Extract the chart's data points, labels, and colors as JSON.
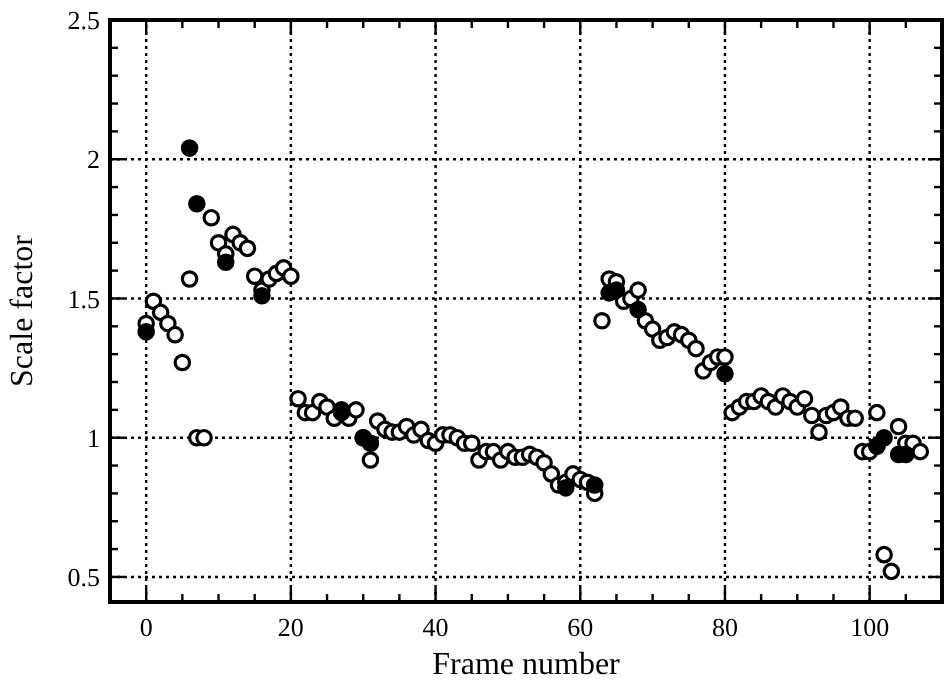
{
  "chart_data": {
    "type": "scatter",
    "xlabel": "Frame number",
    "ylabel": "Scale factor",
    "xlim": [
      -5,
      110
    ],
    "ylim": [
      0.41,
      2.5
    ],
    "xticks": [
      0,
      {
        "value": 5,
        "label": null
      },
      {
        "value": 10,
        "label": null
      },
      {
        "value": 15,
        "label": null
      },
      20,
      {
        "value": 25,
        "label": null
      },
      {
        "value": 30,
        "label": null
      },
      {
        "value": 35,
        "label": null
      },
      40,
      {
        "value": 45,
        "label": null
      },
      {
        "value": 50,
        "label": null
      },
      {
        "value": 55,
        "label": null
      },
      60,
      {
        "value": 65,
        "label": null
      },
      {
        "value": 70,
        "label": null
      },
      {
        "value": 75,
        "label": null
      },
      80,
      {
        "value": 85,
        "label": null
      },
      {
        "value": 90,
        "label": null
      },
      {
        "value": 95,
        "label": null
      },
      100,
      {
        "value": 105,
        "label": null
      }
    ],
    "yticks": [
      0.5,
      {
        "value": 0.6,
        "label": null
      },
      {
        "value": 0.7,
        "label": null
      },
      {
        "value": 0.8,
        "label": null
      },
      {
        "value": 0.9,
        "label": null
      },
      1,
      {
        "value": 1.1,
        "label": null
      },
      {
        "value": 1.2,
        "label": null
      },
      {
        "value": 1.3,
        "label": null
      },
      {
        "value": 1.4,
        "label": null
      },
      1.5,
      {
        "value": 1.6,
        "label": null
      },
      {
        "value": 1.7,
        "label": null
      },
      {
        "value": 1.8,
        "label": null
      },
      {
        "value": 1.9,
        "label": null
      },
      2,
      {
        "value": 2.1,
        "label": null
      },
      {
        "value": 2.2,
        "label": null
      },
      {
        "value": 2.3,
        "label": null
      },
      {
        "value": 2.4,
        "label": null
      },
      2.5
    ],
    "grid": true,
    "marker": "circle",
    "series": [
      {
        "color": "#ffffff",
        "x": [
          0,
          1,
          2,
          3,
          4,
          5,
          6,
          7,
          8,
          9,
          10,
          11,
          12,
          13,
          14,
          15,
          16,
          17,
          18,
          19,
          20,
          21,
          22,
          23,
          24,
          25,
          26,
          27,
          28,
          29,
          30,
          31,
          32,
          33,
          34,
          35,
          36,
          37,
          38,
          39,
          40,
          41,
          42,
          43,
          44,
          45,
          46,
          47,
          48,
          49,
          50,
          51,
          52,
          53,
          54,
          55,
          56,
          57,
          58,
          59,
          60,
          61,
          62,
          63,
          64,
          65,
          66,
          67,
          68,
          69,
          70,
          71,
          72,
          73,
          74,
          75,
          76,
          77,
          78,
          79,
          80,
          81,
          82,
          83,
          84,
          85,
          86,
          87,
          88,
          89,
          90,
          91,
          92,
          93,
          94,
          95,
          96,
          97,
          98,
          99,
          100,
          101,
          101,
          102,
          103,
          104,
          105,
          106,
          107
        ],
        "values": [
          1.41,
          1.49,
          1.45,
          1.41,
          1.37,
          1.27,
          1.57,
          1.0,
          1.0,
          1.79,
          1.7,
          1.66,
          1.73,
          1.7,
          1.68,
          1.58,
          1.53,
          1.57,
          1.59,
          1.61,
          1.58,
          1.14,
          1.09,
          1.09,
          1.13,
          1.11,
          1.07,
          1.1,
          1.07,
          1.1,
          1.0,
          0.92,
          1.06,
          1.03,
          1.02,
          1.02,
          1.04,
          1.01,
          1.03,
          0.99,
          0.98,
          1.01,
          1.01,
          1.0,
          0.98,
          0.98,
          0.92,
          0.95,
          0.95,
          0.92,
          0.95,
          0.93,
          0.93,
          0.94,
          0.93,
          0.91,
          0.87,
          0.83,
          0.84,
          0.87,
          0.85,
          0.84,
          0.8,
          1.42,
          1.57,
          1.56,
          1.49,
          1.5,
          1.53,
          1.42,
          1.39,
          1.35,
          1.36,
          1.38,
          1.37,
          1.35,
          1.32,
          1.24,
          1.27,
          1.29,
          1.29,
          1.09,
          1.11,
          1.13,
          1.13,
          1.15,
          1.13,
          1.11,
          1.15,
          1.13,
          1.11,
          1.14,
          1.08,
          1.02,
          1.08,
          1.09,
          1.11,
          1.07,
          1.07,
          0.95,
          0.95,
          1.09,
          0.97,
          0.58,
          0.52,
          1.04,
          0.98,
          0.98,
          0.95
        ]
      },
      {
        "color": "#000000",
        "x": [
          0,
          6,
          7,
          11,
          16,
          27,
          30,
          31,
          58,
          62,
          64,
          65,
          68,
          80,
          101,
          102,
          104,
          105
        ],
        "values": [
          1.38,
          2.04,
          1.84,
          1.63,
          1.51,
          1.09,
          1.0,
          0.98,
          0.82,
          0.83,
          1.52,
          1.53,
          1.46,
          1.23,
          0.97,
          1.0,
          0.94,
          0.94
        ]
      }
    ]
  }
}
